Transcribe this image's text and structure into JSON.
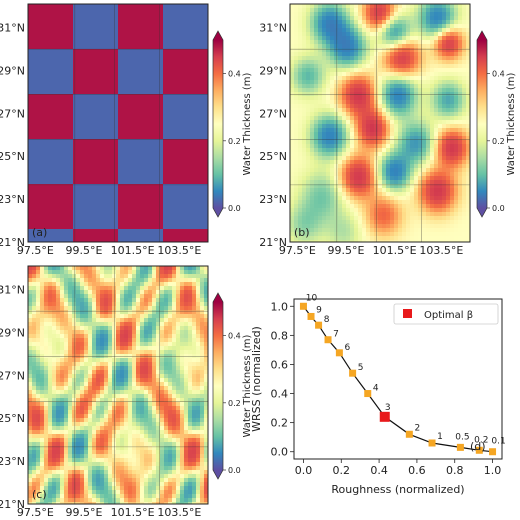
{
  "map_panels": [
    {
      "label": "(a)",
      "pattern": "checkerboard",
      "show_yticks": true,
      "show_xticks": true,
      "colorbar": {
        "label": "Water Thickness (m)",
        "range": [
          0.0,
          0.5
        ],
        "ticks": [
          "0.0",
          "0.2",
          "0.4"
        ]
      }
    },
    {
      "label": "(b)",
      "pattern": "blobs",
      "show_yticks": true,
      "show_xticks": false,
      "colorbar": {
        "label": "Water Thickness (m)",
        "range": [
          0.0,
          0.5
        ],
        "ticks": [
          "0.0",
          "0.2",
          "0.4"
        ]
      }
    },
    {
      "label": "(c)",
      "pattern": "wave",
      "show_yticks": true,
      "show_xticks": true,
      "colorbar": {
        "label": "Water Thickness (m)",
        "range": [
          0.0,
          0.5
        ],
        "ticks": [
          "0.0",
          "0.2",
          "0.4"
        ]
      }
    }
  ],
  "map_axes": {
    "lat_ticks": [
      "21°N",
      "23°N",
      "25°N",
      "27°N",
      "29°N",
      "31°N"
    ],
    "lon_ticks": [
      "97.5°E",
      "99.5°E",
      "101.5°E",
      "103.5°E"
    ]
  },
  "chart_data": {
    "type": "line",
    "label": "(d)",
    "xlabel": "Roughness (normalized)",
    "ylabel": "WRSS (normalized)",
    "xlim": [
      -0.05,
      1.05
    ],
    "ylim": [
      -0.05,
      1.05
    ],
    "xticks": [
      "0.0",
      "0.2",
      "0.4",
      "0.6",
      "0.8",
      "1.0"
    ],
    "yticks": [
      "0.0",
      "0.2",
      "0.4",
      "0.6",
      "0.8",
      "1.0"
    ],
    "grid": false,
    "point_color": "#f5a623",
    "optimal_color": "#e8191b",
    "points": [
      {
        "x": 0.0,
        "y": 1.0,
        "label": "10"
      },
      {
        "x": 0.04,
        "y": 0.93,
        "label": "9"
      },
      {
        "x": 0.08,
        "y": 0.87,
        "label": "8"
      },
      {
        "x": 0.13,
        "y": 0.77,
        "label": "7"
      },
      {
        "x": 0.19,
        "y": 0.68,
        "label": "6"
      },
      {
        "x": 0.26,
        "y": 0.54,
        "label": "5"
      },
      {
        "x": 0.34,
        "y": 0.4,
        "label": "4"
      },
      {
        "x": 0.43,
        "y": 0.24,
        "label": "3",
        "optimal": true
      },
      {
        "x": 0.56,
        "y": 0.12,
        "label": "2"
      },
      {
        "x": 0.68,
        "y": 0.06,
        "label": "1"
      },
      {
        "x": 0.83,
        "y": 0.03,
        "label": "0.5"
      },
      {
        "x": 0.93,
        "y": 0.01,
        "label": "0.2"
      },
      {
        "x": 1.0,
        "y": 0.0,
        "label": "0.1"
      }
    ],
    "legend": {
      "entry": "Optimal β",
      "placement": "top-right"
    }
  }
}
